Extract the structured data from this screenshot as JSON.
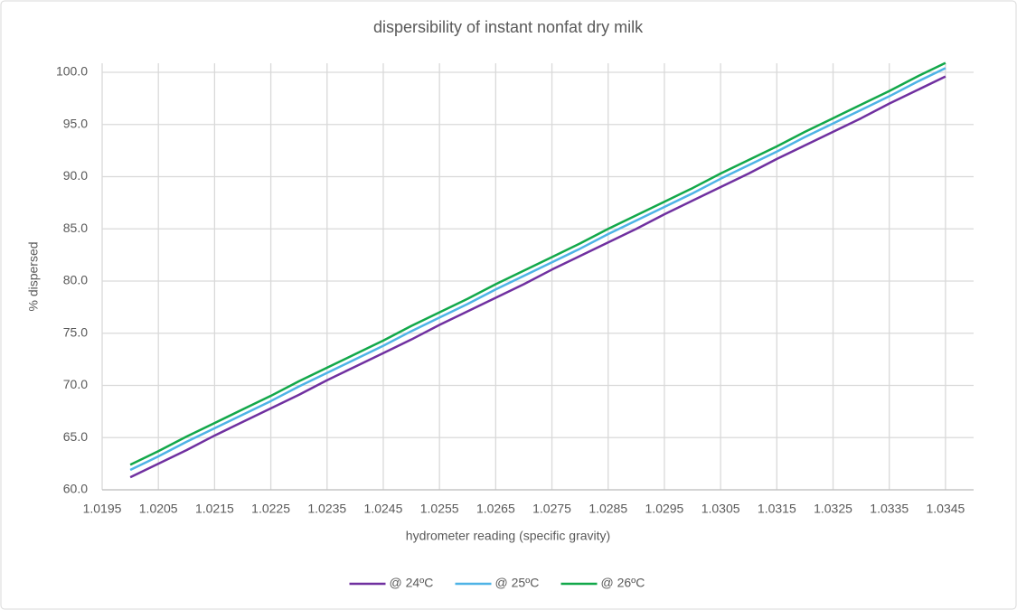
{
  "chart_data": {
    "type": "line",
    "title": "dispersibility of instant nonfat dry milk",
    "x_label": "hydrometer reading (specific gravity)",
    "y_label": "% dispersed",
    "x": [
      1.02,
      1.0205,
      1.021,
      1.0215,
      1.022,
      1.0225,
      1.023,
      1.0235,
      1.024,
      1.0245,
      1.025,
      1.0255,
      1.026,
      1.0265,
      1.027,
      1.0275,
      1.028,
      1.0285,
      1.029,
      1.0295,
      1.03,
      1.0305,
      1.031,
      1.0315,
      1.032,
      1.0325,
      1.033,
      1.0335,
      1.034,
      1.0345
    ],
    "series": [
      {
        "name": "@ 24ºC",
        "color": "#7030a0",
        "values": [
          61.2,
          62.5,
          63.8,
          65.2,
          66.5,
          67.8,
          69.1,
          70.5,
          71.8,
          73.1,
          74.4,
          75.8,
          77.1,
          78.4,
          79.7,
          81.1,
          82.4,
          83.7,
          85.0,
          86.4,
          87.7,
          89.0,
          90.3,
          91.7,
          93.0,
          94.3,
          95.6,
          97.0,
          98.3,
          99.6
        ]
      },
      {
        "name": "@ 25ºC",
        "color": "#4eb3e6",
        "values": [
          61.9,
          63.2,
          64.6,
          65.9,
          67.2,
          68.5,
          69.9,
          71.2,
          72.5,
          73.8,
          75.2,
          76.5,
          77.8,
          79.2,
          80.5,
          81.8,
          83.1,
          84.5,
          85.8,
          87.1,
          88.4,
          89.8,
          91.1,
          92.4,
          93.8,
          95.1,
          96.4,
          97.7,
          99.1,
          100.4
        ]
      },
      {
        "name": "@ 26ºC",
        "color": "#12a84a",
        "values": [
          62.4,
          63.7,
          65.1,
          66.4,
          67.7,
          69.0,
          70.4,
          71.7,
          73.0,
          74.3,
          75.7,
          77.0,
          78.3,
          79.7,
          81.0,
          82.3,
          83.6,
          85.0,
          86.3,
          87.6,
          88.9,
          90.3,
          91.6,
          92.9,
          94.3,
          95.6,
          96.9,
          98.2,
          99.6,
          100.9
        ]
      }
    ],
    "xlim": [
      1.0195,
      1.035
    ],
    "xticks": [
      1.0195,
      1.0205,
      1.0215,
      1.0225,
      1.0235,
      1.0245,
      1.0255,
      1.0265,
      1.0275,
      1.0285,
      1.0295,
      1.0305,
      1.0315,
      1.0325,
      1.0335,
      1.0345
    ],
    "ylim": [
      60,
      100
    ],
    "yticks": [
      {
        "value": 60,
        "label": "60.0"
      },
      {
        "value": 65,
        "label": "65.0"
      },
      {
        "value": 70,
        "label": "70.0"
      },
      {
        "value": 75,
        "label": "75.0"
      },
      {
        "value": 80,
        "label": "80.0"
      },
      {
        "value": 85,
        "label": "85.0"
      },
      {
        "value": 90,
        "label": "90.0"
      },
      {
        "value": 95,
        "label": "95.0"
      },
      {
        "value": 100,
        "label": "100.0"
      }
    ],
    "grid": true,
    "legend": "bottom"
  }
}
